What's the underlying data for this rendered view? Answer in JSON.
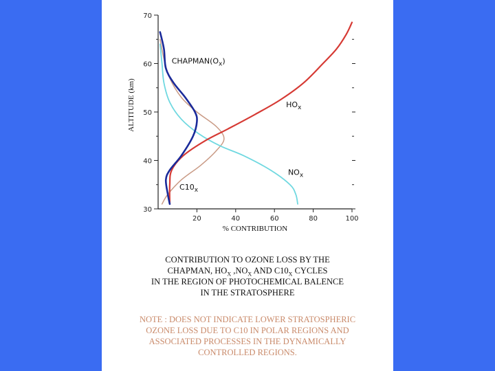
{
  "chart_data": {
    "type": "line",
    "xlabel": "% CONTRIBUTION",
    "ylabel": "ALTITUDE (km)",
    "xlim": [
      0,
      100
    ],
    "ylim": [
      30,
      70
    ],
    "x_ticks": [
      20,
      40,
      60,
      80,
      100
    ],
    "y_ticks": [
      30,
      40,
      50,
      60,
      70
    ],
    "series": [
      {
        "name": "CHAPMAN(Ox)",
        "color": "#1a2a9a",
        "points": [
          [
            6,
            31
          ],
          [
            5,
            33
          ],
          [
            4,
            36
          ],
          [
            6,
            38
          ],
          [
            12,
            41
          ],
          [
            18,
            45
          ],
          [
            20,
            48
          ],
          [
            19,
            50
          ],
          [
            14,
            53
          ],
          [
            8,
            56
          ],
          [
            4,
            59
          ],
          [
            3,
            63
          ],
          [
            1,
            66.5
          ]
        ]
      },
      {
        "name": "HOx",
        "color": "#d63a34",
        "points": [
          [
            6,
            31
          ],
          [
            6,
            35
          ],
          [
            7,
            38
          ],
          [
            13,
            41
          ],
          [
            24,
            44
          ],
          [
            36,
            46.5
          ],
          [
            50,
            49.5
          ],
          [
            63,
            52.5
          ],
          [
            75,
            56
          ],
          [
            85,
            60
          ],
          [
            92,
            63
          ],
          [
            97,
            66
          ],
          [
            100,
            68.5
          ]
        ]
      },
      {
        "name": "NOx",
        "color": "#6fd8e0",
        "points": [
          [
            72,
            31
          ],
          [
            71,
            33
          ],
          [
            68,
            35
          ],
          [
            58,
            38
          ],
          [
            44,
            41
          ],
          [
            32,
            43
          ],
          [
            21,
            45.5
          ],
          [
            12,
            48.5
          ],
          [
            6,
            52
          ],
          [
            3,
            56
          ],
          [
            2,
            60
          ],
          [
            1,
            64
          ]
        ]
      },
      {
        "name": "C10x",
        "color": "#c99a85",
        "points": [
          [
            2,
            31
          ],
          [
            5,
            33
          ],
          [
            12,
            36
          ],
          [
            22,
            39
          ],
          [
            30,
            42
          ],
          [
            34,
            44.5
          ],
          [
            30,
            47
          ],
          [
            20,
            50
          ],
          [
            12,
            53
          ],
          [
            6,
            57
          ],
          [
            3,
            61
          ],
          [
            1,
            65
          ]
        ]
      }
    ],
    "labels": [
      {
        "text": "CHAPMAN(O",
        "sub": "x",
        "suffix": ")",
        "x": 7,
        "y": 60
      },
      {
        "text": "HO",
        "sub": "x",
        "suffix": "",
        "x": 66,
        "y": 51
      },
      {
        "text": "NO",
        "sub": "x",
        "suffix": "",
        "x": 67,
        "y": 37
      },
      {
        "text": "C10",
        "sub": "x",
        "suffix": "",
        "x": 11,
        "y": 34
      }
    ]
  },
  "caption": {
    "line1": "CONTRIBUTION TO OZONE LOSS BY THE",
    "line2_a": "CHAPMAN, HO",
    "line2_b": " ,NO",
    "line2_c": " AND  C10",
    "line2_d": " CYCLES",
    "sub_x": "X",
    "line3": "IN THE REGION OF PHOTOCHEMICAL BALENCE",
    "line4": "IN THE STRATOSPHERE"
  },
  "note": {
    "line1": "NOTE : DOES NOT INDICATE LOWER STRATOSPHERIC",
    "line2": "OZONE LOSS DUE TO C10   IN POLAR REGIONS AND",
    "line3": "ASSOCIATED PROCESSES IN THE DYNAMICALLY",
    "line4": "CONTROLLED REGIONS."
  }
}
